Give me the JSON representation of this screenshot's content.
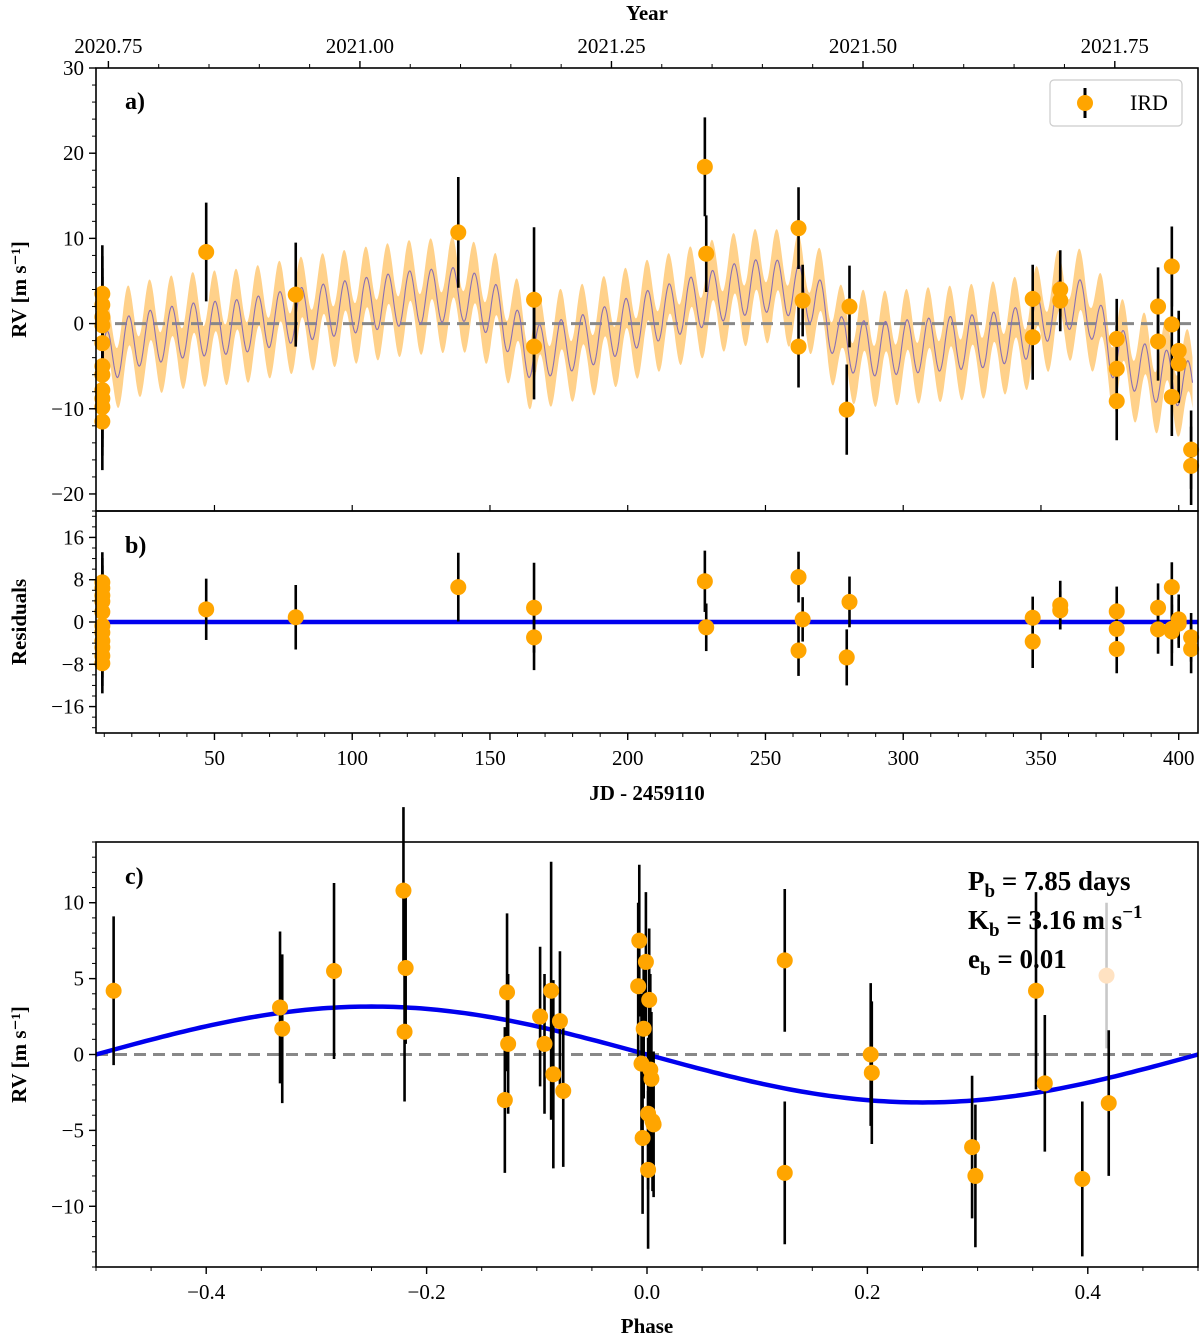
{
  "chart_data": [
    {
      "id": "a",
      "type": "scatter",
      "panel_label": "a)",
      "top_axis_title": "Year",
      "top_ticks": [
        {
          "x": 11.5,
          "label": "2020.75"
        },
        {
          "x": 102.8,
          "label": "2021.00"
        },
        {
          "x": 194.1,
          "label": "2021.25"
        },
        {
          "x": 285.4,
          "label": "2021.50"
        },
        {
          "x": 376.8,
          "label": "2021.75"
        }
      ],
      "ylabel": "RV [m s⁻¹]",
      "xlim": [
        7,
        407
      ],
      "ylim": [
        -22,
        30
      ],
      "yticks": [
        -20,
        -10,
        0,
        10,
        20,
        30
      ],
      "ytick_labels": [
        "−20",
        "−10",
        "0",
        "10",
        "20",
        "30"
      ],
      "legend": {
        "label": "IRD",
        "loc": "upper right"
      },
      "model": {
        "long_term": [
          [
            9,
            -4.5
          ],
          [
            20,
            -2.0
          ],
          [
            40,
            -0.8
          ],
          [
            60,
            -0.3
          ],
          [
            80,
            1.0
          ],
          [
            100,
            2.0
          ],
          [
            120,
            3.0
          ],
          [
            140,
            3.5
          ],
          [
            152,
            1.5
          ],
          [
            165,
            -3.5
          ],
          [
            185,
            -2.0
          ],
          [
            205,
            0.5
          ],
          [
            225,
            2.5
          ],
          [
            240,
            4.0
          ],
          [
            250,
            4.5
          ],
          [
            260,
            4.0
          ],
          [
            268,
            3.0
          ],
          [
            278,
            -2.5
          ],
          [
            290,
            -3.0
          ],
          [
            310,
            -2.5
          ],
          [
            330,
            -2.0
          ],
          [
            345,
            -1.0
          ],
          [
            352,
            1.0
          ],
          [
            360,
            2.5
          ],
          [
            368,
            1.5
          ],
          [
            375,
            -3.0
          ],
          [
            390,
            -6.0
          ],
          [
            400,
            -6.5
          ],
          [
            405,
            -8.0
          ]
        ],
        "period": 7.85,
        "amplitude": 3.16,
        "phase_ref": 9,
        "band_half_width": 4.2
      },
      "zero_line": 0,
      "points": [
        {
          "x": 9.3,
          "y": 3.5,
          "err": 5.7
        },
        {
          "x": 9.3,
          "y": 2.2,
          "err": 5.7
        },
        {
          "x": 9.3,
          "y": 0.8,
          "err": 5.7
        },
        {
          "x": 9.3,
          "y": -0.2,
          "err": 5.7
        },
        {
          "x": 9.3,
          "y": -2.3,
          "err": 5.7
        },
        {
          "x": 9.3,
          "y": -5.0,
          "err": 5.7
        },
        {
          "x": 9.3,
          "y": -6.0,
          "err": 5.7
        },
        {
          "x": 9.3,
          "y": -7.8,
          "err": 5.7
        },
        {
          "x": 9.3,
          "y": -8.8,
          "err": 5.7
        },
        {
          "x": 9.3,
          "y": -9.8,
          "err": 5.7
        },
        {
          "x": 9.3,
          "y": -11.5,
          "err": 5.7
        },
        {
          "x": 47,
          "y": 8.4,
          "err": 5.8
        },
        {
          "x": 79.5,
          "y": 3.4,
          "err": 6.1
        },
        {
          "x": 138.5,
          "y": 10.7,
          "err": 6.5
        },
        {
          "x": 166,
          "y": 2.8,
          "err": 8.5
        },
        {
          "x": 166,
          "y": -2.7,
          "err": 6.2
        },
        {
          "x": 228,
          "y": 18.4,
          "err": 5.8
        },
        {
          "x": 228.5,
          "y": 8.2,
          "err": 4.5
        },
        {
          "x": 262,
          "y": 11.2,
          "err": 4.8
        },
        {
          "x": 263.5,
          "y": 2.7,
          "err": 4.2
        },
        {
          "x": 262,
          "y": -2.7,
          "err": 4.8
        },
        {
          "x": 279.5,
          "y": -10.1,
          "err": 5.3
        },
        {
          "x": 280.5,
          "y": 2.0,
          "err": 4.8
        },
        {
          "x": 347,
          "y": 2.9,
          "err": 4.0
        },
        {
          "x": 347,
          "y": -1.6,
          "err": 5.0
        },
        {
          "x": 357,
          "y": 4.0,
          "err": 4.6
        },
        {
          "x": 357,
          "y": 2.7,
          "err": 3.6
        },
        {
          "x": 377.5,
          "y": -1.8,
          "err": 4.7
        },
        {
          "x": 377.5,
          "y": -5.3,
          "err": 5.0
        },
        {
          "x": 377.5,
          "y": -9.1,
          "err": 4.6
        },
        {
          "x": 392.5,
          "y": 2.0,
          "err": 4.6
        },
        {
          "x": 392.5,
          "y": -2.1,
          "err": 4.6
        },
        {
          "x": 397.5,
          "y": 6.7,
          "err": 4.7
        },
        {
          "x": 397.5,
          "y": -0.1,
          "err": 6.5
        },
        {
          "x": 397.5,
          "y": -8.6,
          "err": 4.6
        },
        {
          "x": 400,
          "y": -3.2,
          "err": 4.7
        },
        {
          "x": 400,
          "y": -4.7,
          "err": 4.6
        },
        {
          "x": 404.5,
          "y": -14.8,
          "err": 4.6
        },
        {
          "x": 404.5,
          "y": -16.7,
          "err": 4.6
        }
      ]
    },
    {
      "id": "b",
      "type": "scatter",
      "panel_label": "b)",
      "ylabel": "Residuals",
      "xlabel": "JD - 2459110",
      "xlim": [
        7,
        407
      ],
      "xticks": [
        50,
        100,
        150,
        200,
        250,
        300,
        350,
        400
      ],
      "ylim": [
        -21,
        21
      ],
      "yticks": [
        -16,
        -8,
        0,
        8,
        16
      ],
      "ytick_labels": [
        "−16",
        "−8",
        "0",
        "8",
        "16"
      ],
      "zero_line": 0,
      "points": [
        {
          "x": 9.3,
          "y": 7.5,
          "err": 5.7
        },
        {
          "x": 9.3,
          "y": 6.4,
          "err": 5.7
        },
        {
          "x": 9.3,
          "y": 5.0,
          "err": 5.7
        },
        {
          "x": 9.3,
          "y": 3.9,
          "err": 5.7
        },
        {
          "x": 9.3,
          "y": 1.9,
          "err": 5.7
        },
        {
          "x": 9.3,
          "y": -0.7,
          "err": 5.7
        },
        {
          "x": 9.3,
          "y": -2.0,
          "err": 5.7
        },
        {
          "x": 9.3,
          "y": -3.6,
          "err": 5.7
        },
        {
          "x": 9.3,
          "y": -4.8,
          "err": 5.7
        },
        {
          "x": 9.3,
          "y": -6.4,
          "err": 5.7
        },
        {
          "x": 9.3,
          "y": -7.8,
          "err": 5.7
        },
        {
          "x": 47,
          "y": 2.4,
          "err": 5.8
        },
        {
          "x": 79.5,
          "y": 0.9,
          "err": 6.1
        },
        {
          "x": 138.5,
          "y": 6.6,
          "err": 6.5
        },
        {
          "x": 166,
          "y": 2.7,
          "err": 8.5
        },
        {
          "x": 166,
          "y": -2.9,
          "err": 6.2
        },
        {
          "x": 228,
          "y": 7.7,
          "err": 5.8
        },
        {
          "x": 228.5,
          "y": -1.0,
          "err": 4.5
        },
        {
          "x": 262,
          "y": 8.5,
          "err": 4.8
        },
        {
          "x": 263.5,
          "y": 0.5,
          "err": 4.2
        },
        {
          "x": 262,
          "y": -5.4,
          "err": 4.8
        },
        {
          "x": 279.5,
          "y": -6.7,
          "err": 5.3
        },
        {
          "x": 280.5,
          "y": 3.8,
          "err": 4.8
        },
        {
          "x": 347,
          "y": 0.8,
          "err": 4.0
        },
        {
          "x": 347,
          "y": -3.7,
          "err": 5.0
        },
        {
          "x": 357,
          "y": 3.2,
          "err": 4.6
        },
        {
          "x": 357,
          "y": 2.2,
          "err": 3.6
        },
        {
          "x": 377.5,
          "y": 2.0,
          "err": 4.7
        },
        {
          "x": 377.5,
          "y": -1.3,
          "err": 5.0
        },
        {
          "x": 377.5,
          "y": -5.1,
          "err": 4.6
        },
        {
          "x": 392.5,
          "y": 2.7,
          "err": 4.6
        },
        {
          "x": 392.5,
          "y": -1.4,
          "err": 4.6
        },
        {
          "x": 397.5,
          "y": 6.6,
          "err": 4.7
        },
        {
          "x": 397.5,
          "y": -1.8,
          "err": 6.5
        },
        {
          "x": 397.5,
          "y": -1.3,
          "err": 4.6
        },
        {
          "x": 400,
          "y": 0.5,
          "err": 4.7
        },
        {
          "x": 400,
          "y": -0.3,
          "err": 4.6
        },
        {
          "x": 404.5,
          "y": -2.9,
          "err": 4.6
        },
        {
          "x": 404.5,
          "y": -5.1,
          "err": 4.6
        }
      ]
    },
    {
      "id": "c",
      "type": "scatter",
      "panel_label": "c)",
      "ylabel": "RV [m s⁻¹]",
      "xlabel": "Phase",
      "xlim": [
        -0.5,
        0.5
      ],
      "xticks": [
        -0.4,
        -0.2,
        0.0,
        0.2,
        0.4
      ],
      "xtick_labels": [
        "−0.4",
        "−0.2",
        "0.0",
        "0.2",
        "0.4"
      ],
      "ylim": [
        -14,
        14
      ],
      "yticks": [
        -10,
        -5,
        0,
        5,
        10
      ],
      "ytick_labels": [
        "−10",
        "−5",
        "0",
        "5",
        "10"
      ],
      "zero_line": 0,
      "model": {
        "K": 3.16,
        "phase_peak": -0.25
      },
      "annotations": [
        {
          "main": "P",
          "sub": "b",
          "rest": " = 7.85 days"
        },
        {
          "main": "K",
          "sub": "b",
          "rest": " = 3.16 m s",
          "sup": "−1"
        },
        {
          "main": "e",
          "sub": "b",
          "rest": " = 0.01"
        }
      ],
      "points": [
        {
          "x": -0.484,
          "y": 4.2,
          "err": 4.9
        },
        {
          "x": -0.333,
          "y": 3.1,
          "err": 5.0
        },
        {
          "x": -0.331,
          "y": 1.7,
          "err": 4.9
        },
        {
          "x": -0.284,
          "y": 5.5,
          "err": 5.8
        },
        {
          "x": -0.221,
          "y": 10.8,
          "err": 5.5
        },
        {
          "x": -0.219,
          "y": 5.7,
          "err": 5.0
        },
        {
          "x": -0.22,
          "y": 1.5,
          "err": 4.6
        },
        {
          "x": -0.127,
          "y": 4.1,
          "err": 5.2
        },
        {
          "x": -0.126,
          "y": 0.7,
          "err": 4.6
        },
        {
          "x": -0.129,
          "y": -3.0,
          "err": 4.8
        },
        {
          "x": -0.097,
          "y": 2.5,
          "err": 4.6
        },
        {
          "x": -0.093,
          "y": 0.7,
          "err": 4.6
        },
        {
          "x": -0.087,
          "y": 4.2,
          "err": 8.5
        },
        {
          "x": -0.085,
          "y": -1.3,
          "err": 6.2
        },
        {
          "x": -0.079,
          "y": 2.2,
          "err": 4.6
        },
        {
          "x": -0.076,
          "y": -2.4,
          "err": 5.0
        },
        {
          "x": -0.007,
          "y": 7.5,
          "err": 5.0
        },
        {
          "x": -0.008,
          "y": 4.5,
          "err": 5.5
        },
        {
          "x": -0.005,
          "y": -0.6,
          "err": 4.6
        },
        {
          "x": -0.003,
          "y": 1.7,
          "err": 4.6
        },
        {
          "x": -0.004,
          "y": -5.5,
          "err": 5.0
        },
        {
          "x": -0.001,
          "y": 6.1,
          "err": 4.6
        },
        {
          "x": 0.001,
          "y": -3.9,
          "err": 5.0
        },
        {
          "x": 0.002,
          "y": 3.6,
          "err": 4.7
        },
        {
          "x": 0.003,
          "y": -1.0,
          "err": 6.3
        },
        {
          "x": 0.001,
          "y": -7.6,
          "err": 5.2
        },
        {
          "x": 0.004,
          "y": -1.6,
          "err": 4.4
        },
        {
          "x": 0.006,
          "y": -4.6,
          "err": 4.8
        },
        {
          "x": 0.005,
          "y": -4.4,
          "err": 4.6
        },
        {
          "x": 0.125,
          "y": 6.2,
          "err": 4.7
        },
        {
          "x": 0.125,
          "y": -7.8,
          "err": 4.7
        },
        {
          "x": 0.203,
          "y": 0.0,
          "err": 4.7
        },
        {
          "x": 0.204,
          "y": -1.2,
          "err": 4.7
        },
        {
          "x": 0.295,
          "y": -6.1,
          "err": 4.7
        },
        {
          "x": 0.298,
          "y": -8.0,
          "err": 4.7
        },
        {
          "x": 0.353,
          "y": 4.2,
          "err": 6.5
        },
        {
          "x": 0.361,
          "y": -1.9,
          "err": 4.5
        },
        {
          "x": 0.395,
          "y": -8.2,
          "err": 5.1
        },
        {
          "x": 0.417,
          "y": 5.2,
          "err": 4.8,
          "faded": true
        },
        {
          "x": 0.419,
          "y": -3.2,
          "err": 4.8
        }
      ]
    }
  ],
  "style": {
    "point_color": "#FFA500",
    "band_color": "#FFD18A",
    "model_line_color": "#8a6fb3",
    "fit_color": "#0000EE",
    "zero_color": "#888888"
  }
}
